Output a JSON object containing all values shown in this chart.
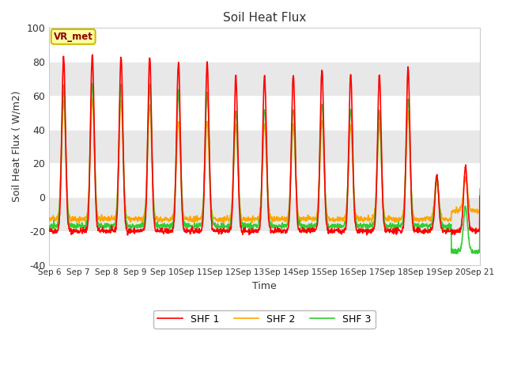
{
  "title": "Soil Heat Flux",
  "ylabel": "Soil Heat Flux ( W/m2)",
  "xlabel": "Time",
  "ylim": [
    -40,
    100
  ],
  "fig_bg_color": "#ffffff",
  "plot_bg_color": "#e8e8e8",
  "series_colors": [
    "red",
    "orange",
    "limegreen"
  ],
  "series_labels": [
    "SHF 1",
    "SHF 2",
    "SHF 3"
  ],
  "xtick_labels": [
    "Sep 6",
    "Sep 7",
    "Sep 8",
    "Sep 9",
    "Sep 10",
    "Sep 11",
    "Sep 12",
    "Sep 13",
    "Sep 14",
    "Sep 15",
    "Sep 16",
    "Sep 17",
    "Sep 18",
    "Sep 19",
    "Sep 20",
    "Sep 21"
  ],
  "yticks": [
    -40,
    -20,
    0,
    20,
    40,
    60,
    80,
    100
  ],
  "watermark": "VR_met",
  "n_days": 15,
  "peaks_shf1": [
    83,
    84,
    83,
    83,
    80,
    80,
    71,
    72,
    72,
    75,
    72,
    72,
    76,
    13,
    18
  ],
  "peaks_shf2": [
    57,
    58,
    57,
    55,
    45,
    45,
    43,
    43,
    43,
    45,
    43,
    43,
    50,
    8,
    6
  ],
  "peaks_shf3": [
    65,
    67,
    66,
    66,
    62,
    62,
    51,
    52,
    52,
    55,
    52,
    50,
    58,
    11,
    10
  ],
  "trough_shf1": -20,
  "trough_shf2": -13,
  "trough_shf3": -17,
  "linewidth": 1.2
}
